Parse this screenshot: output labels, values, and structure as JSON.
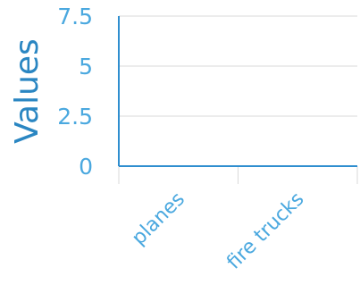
{
  "chart_data": {
    "type": "bar",
    "title": "",
    "xlabel": "",
    "ylabel": "Values",
    "categories": [
      "planes",
      "fire trucks"
    ],
    "values": [
      0,
      0
    ],
    "ylim": [
      0,
      7.5
    ],
    "yticks": [
      "0",
      "2.5",
      "5",
      "7.5"
    ],
    "grid": true,
    "legend": "none",
    "colors": {
      "axis": "#2f8ecf",
      "tick_text": "#4aa8df",
      "title_text": "#2a86c2",
      "grid": "#d9d9d9",
      "bar": "#2f8ecf"
    }
  }
}
